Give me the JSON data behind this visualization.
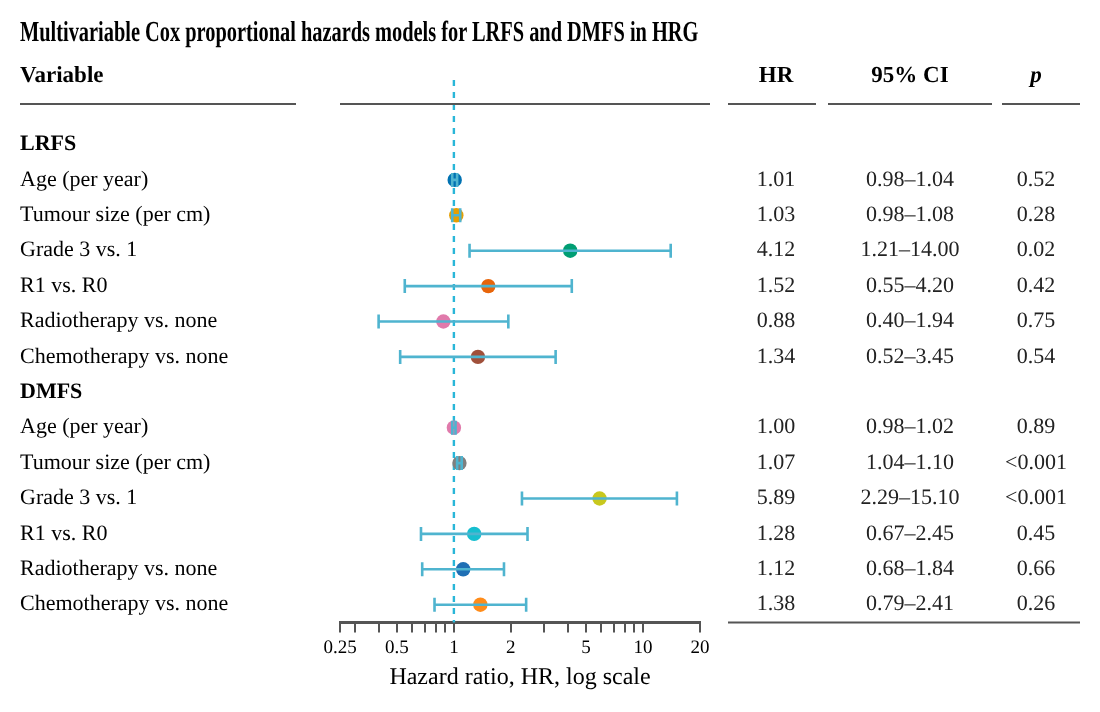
{
  "chart_data": {
    "type": "scatter",
    "orientation": "horizontal",
    "title": "Multivariable Cox proportional hazards models for LRFS and DMFS in HRG",
    "ylabel": "Variable",
    "xlabel": "Hazard ratio, HR, log scale",
    "categories": [
      "LRFS",
      "Age (per year)",
      "Tumour size (per cm)",
      "Grade 3 vs. 1",
      "R1 vs. R0",
      "Radiotherapy vs. none",
      "Chemotherapy vs. none",
      "DMFS",
      "Age (per year)",
      "Tumour size (per cm)",
      "Grade 3 vs. 1",
      "R1 vs. R0",
      "Radiotherapy vs. none",
      "Chemotherapy vs. none"
    ],
    "values": [
      null,
      1.01,
      1.03,
      4.12,
      1.52,
      0.88,
      1.34,
      null,
      1.0,
      1.07,
      5.89,
      1.28,
      1.12,
      1.38
    ],
    "value_labels": [
      null,
      "1.01",
      "1.03",
      "4.12",
      "1.52",
      "0.88",
      "1.34",
      null,
      "1.00",
      "1.07",
      "5.89",
      "1.28",
      "1.12",
      "1.38"
    ],
    "errors": [
      null,
      [
        0.98,
        1.04
      ],
      [
        0.98,
        1.08
      ],
      [
        1.21,
        14.0
      ],
      [
        0.55,
        4.2
      ],
      [
        0.4,
        1.94
      ],
      [
        0.52,
        3.45
      ],
      null,
      [
        0.98,
        1.02
      ],
      [
        1.04,
        1.1
      ],
      [
        2.29,
        15.1
      ],
      [
        0.67,
        2.45
      ],
      [
        0.68,
        1.84
      ],
      [
        0.79,
        2.41
      ]
    ],
    "colors": [
      null,
      "#0072b2",
      "#e69f00",
      "#009e73",
      "#e8650a",
      "#e07aab",
      "#a0503a",
      null,
      "#e07aab",
      "#7f7f7f",
      "#c8c81e",
      "#17becf",
      "#1f6fb4",
      "#ff8c1a"
    ],
    "marker": "circle",
    "log": "x",
    "xlim": [
      0.25,
      20
    ],
    "xticks": [
      0.25,
      {
        "value": 0.3,
        "label": null
      },
      {
        "value": 0.4,
        "label": null
      },
      0.5,
      {
        "value": 0.6,
        "label": null
      },
      {
        "value": 0.7,
        "label": null
      },
      {
        "value": 0.8,
        "label": null
      },
      {
        "value": 0.9,
        "label": null
      },
      1,
      2,
      {
        "value": 3,
        "label": null
      },
      {
        "value": 4,
        "label": null
      },
      5,
      {
        "value": 6,
        "label": null
      },
      {
        "value": 7,
        "label": null
      },
      {
        "value": 8,
        "label": null
      },
      {
        "value": 9,
        "label": null
      },
      10,
      20
    ],
    "ref_lines": [
      {
        "axis": "x",
        "value": 1,
        "color": "#29b6d8",
        "line_style": "dashed"
      }
    ],
    "annotations": [
      "HR",
      "95% CI",
      "p",
      "0.98–1.04",
      "0.52",
      "0.98–1.08",
      "0.28",
      "1.21–14.00",
      "0.02",
      "0.55–4.20",
      "0.42",
      "0.40–1.94",
      "0.75",
      "0.52–3.45",
      "0.54",
      "0.98–1.02",
      "0.89",
      "1.04–1.10",
      "<0.001",
      "2.29–15.10",
      "<0.001",
      "0.67–2.45",
      "0.45",
      "0.68–1.84",
      "0.66",
      "0.79–2.41",
      "0.26"
    ],
    "grid": false,
    "legend": false
  }
}
